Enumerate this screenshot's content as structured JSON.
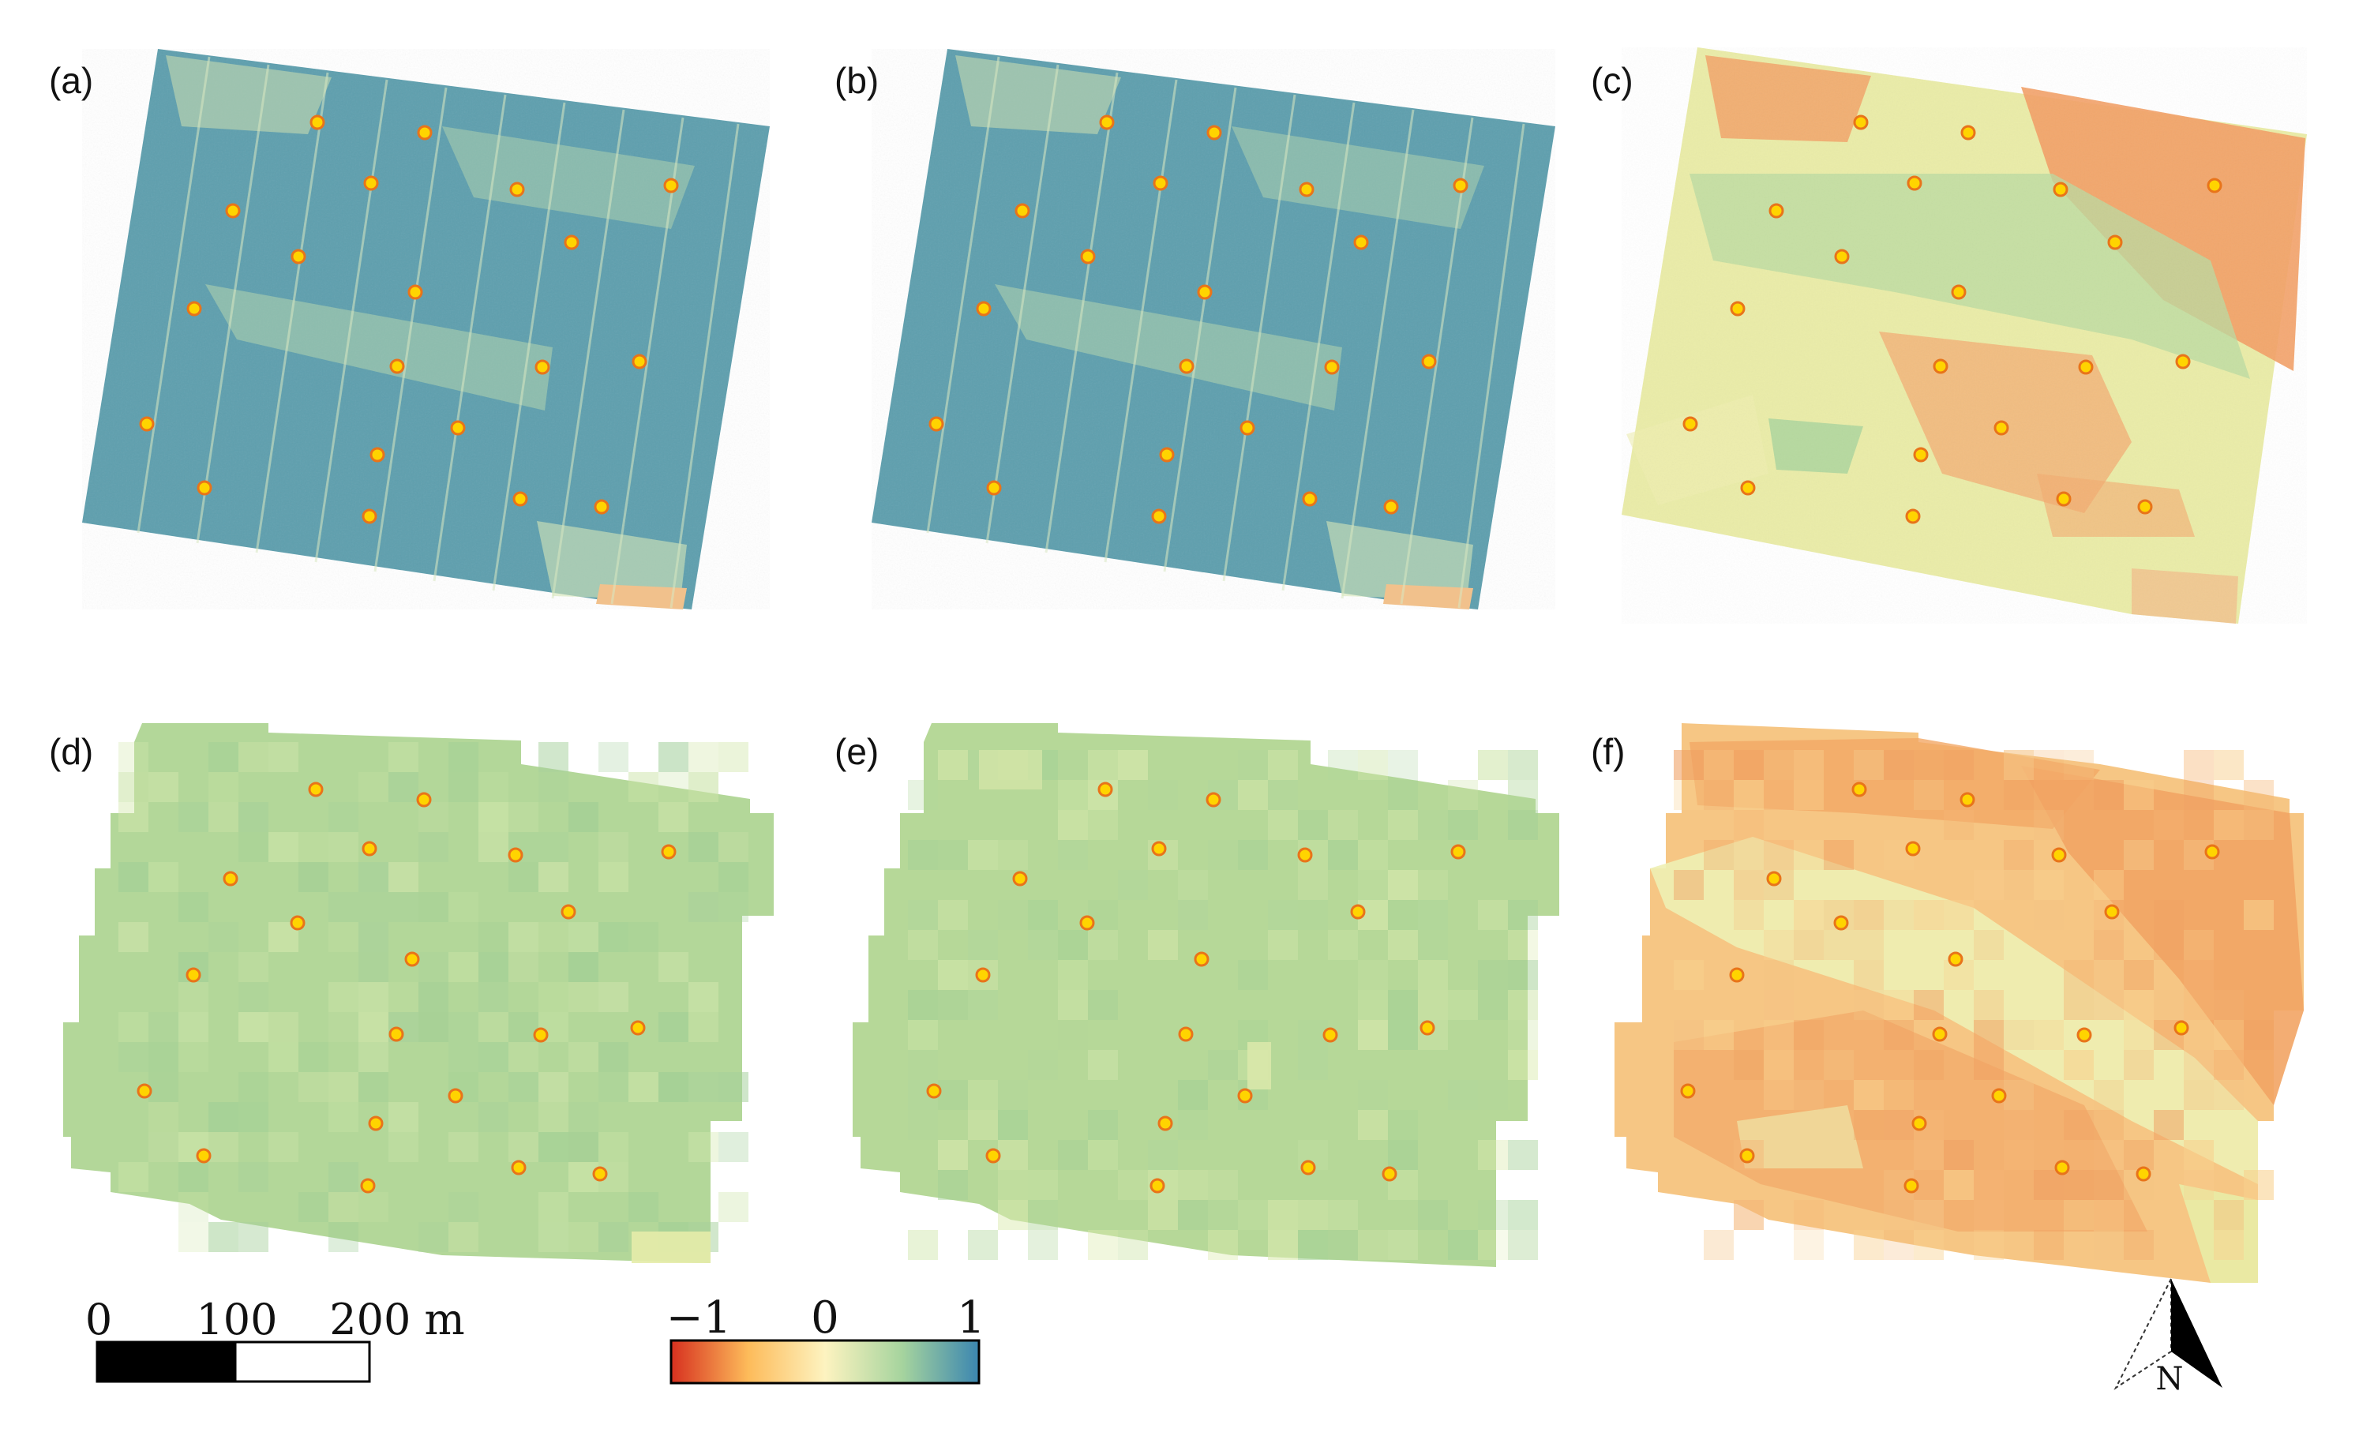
{
  "panels": [
    {
      "label": "(a)",
      "scheme": "fine-high"
    },
    {
      "label": "(b)",
      "scheme": "fine-high"
    },
    {
      "label": "(c)",
      "scheme": "fine-low"
    },
    {
      "label": "(d)",
      "scheme": "coarse-mid"
    },
    {
      "label": "(e)",
      "scheme": "coarse-mid"
    },
    {
      "label": "(f)",
      "scheme": "coarse-low"
    }
  ],
  "sample_point_count_per_panel": 20,
  "scalebar": {
    "labels": [
      "0",
      "100",
      "200 m"
    ]
  },
  "colorbar": {
    "labels": [
      "−1",
      "0",
      "1"
    ],
    "min": -1,
    "max": 1,
    "colors": [
      "#d7301f",
      "#fdbb5a",
      "#fdf3c0",
      "#a6d49e",
      "#3b86b0"
    ]
  },
  "north_arrow": {
    "label": "N"
  },
  "colors": {
    "point_fill": "#ffd400",
    "point_stroke": "#e8741a",
    "field_blue": "#5d9fae",
    "field_green": "#b7d89c",
    "field_orange": "#f3aa6b"
  }
}
